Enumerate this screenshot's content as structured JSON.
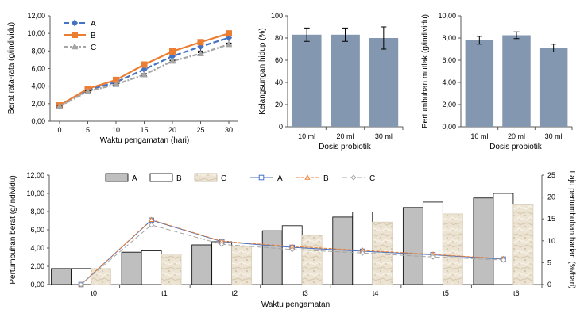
{
  "chart_data": [
    {
      "type": "line",
      "title": "",
      "xlabel": "Waktu pengamatan (hari)",
      "ylabel": "Berat rata-rata (g/individu)",
      "x": [
        0,
        5,
        10,
        15,
        20,
        25,
        30
      ],
      "x_ticks": [
        "0",
        "5",
        "10",
        "15",
        "20",
        "25",
        "30"
      ],
      "ylim": [
        0,
        12
      ],
      "y_ticks": [
        "0,00",
        "2,00",
        "4,00",
        "6,00",
        "8,00",
        "10,00",
        "12,00"
      ],
      "series": [
        {
          "name": "A",
          "color": "#4472c4",
          "marker": "diamond",
          "values": [
            1.75,
            3.55,
            4.45,
            5.9,
            7.4,
            8.5,
            9.5
          ],
          "errors": [
            0.15,
            0.2,
            0.3,
            0.5,
            0.5,
            0.5,
            0.6
          ]
        },
        {
          "name": "B",
          "color": "#ed7d31",
          "marker": "square",
          "values": [
            1.8,
            3.7,
            4.7,
            6.45,
            7.95,
            9.0,
            10.0
          ],
          "errors": [
            0.1,
            0.1,
            0.15,
            0.2,
            0.2,
            0.2,
            0.2
          ]
        },
        {
          "name": "C",
          "color": "#a5a5a5",
          "marker": "triangle",
          "values": [
            1.7,
            3.4,
            4.2,
            5.3,
            6.85,
            7.7,
            8.75
          ],
          "errors": [
            0.1,
            0.1,
            0.1,
            0.1,
            0.1,
            0.1,
            0.1
          ]
        }
      ]
    },
    {
      "type": "bar",
      "title": "",
      "xlabel": "Dosis probiotik",
      "ylabel": "Kelangsungan hidup (%)",
      "categories": [
        "10 ml",
        "20 ml",
        "30 ml"
      ],
      "values": [
        83,
        83,
        80
      ],
      "errors": [
        6,
        6,
        10
      ],
      "ylim": [
        0,
        100
      ],
      "y_ticks": [
        "0",
        "20",
        "40",
        "60",
        "80",
        "100"
      ],
      "color": "#8497b0"
    },
    {
      "type": "bar",
      "title": "",
      "xlabel": "Dosis probiotik",
      "ylabel": "Pertumbuhan mutlak (g/individu)",
      "categories": [
        "10 ml",
        "20 ml",
        "30 ml"
      ],
      "values": [
        7.8,
        8.25,
        7.1
      ],
      "errors": [
        0.35,
        0.3,
        0.35
      ],
      "ylim": [
        0,
        10
      ],
      "y_ticks": [
        "0,00",
        "2,00",
        "4,00",
        "6,00",
        "8,00",
        "10,00"
      ],
      "color": "#8497b0"
    },
    {
      "type": "bar",
      "title": "",
      "xlabel": "Waktu pengamatan",
      "ylabel": "Pertumbuhan berat (g/individu)",
      "y2label": "Laju pertumbuhan harian (%/hari)",
      "categories": [
        "t0",
        "t1",
        "t2",
        "t3",
        "t4",
        "t5",
        "t6"
      ],
      "ylim": [
        0,
        12
      ],
      "y_ticks": [
        "0,00",
        "2,00",
        "4,00",
        "6,00",
        "8,00",
        "10,00",
        "12,00"
      ],
      "y2lim": [
        0,
        25
      ],
      "y2_ticks": [
        "0",
        "5",
        "10",
        "15",
        "20",
        "25"
      ],
      "bar_series": [
        {
          "name": "A",
          "style": "gray",
          "values": [
            1.75,
            3.55,
            4.35,
            5.9,
            7.4,
            8.45,
            9.5
          ]
        },
        {
          "name": "B",
          "style": "white",
          "values": [
            1.75,
            3.7,
            4.7,
            6.45,
            7.95,
            9.05,
            10.0
          ]
        },
        {
          "name": "C",
          "style": "texture",
          "values": [
            1.75,
            3.35,
            4.2,
            5.4,
            6.85,
            7.75,
            8.75
          ]
        }
      ],
      "line_series": [
        {
          "name": "A",
          "color": "#4472c4",
          "marker": "square",
          "values": [
            0,
            14.7,
            9.8,
            8.5,
            7.6,
            6.8,
            5.8
          ]
        },
        {
          "name": "B",
          "color": "#ed7d31",
          "marker": "triangle",
          "values": [
            0,
            14.8,
            9.9,
            8.7,
            7.8,
            6.9,
            5.9
          ]
        },
        {
          "name": "C",
          "color": "#a5a5a5",
          "marker": "diamond",
          "values": [
            0,
            13.6,
            9.2,
            8.0,
            7.2,
            6.3,
            5.6
          ]
        }
      ]
    }
  ]
}
